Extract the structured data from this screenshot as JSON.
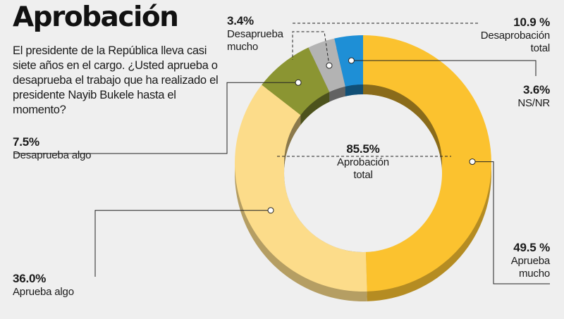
{
  "title": "Aprobación",
  "question": "El presidente de la República lleva casi siete años en el cargo. ¿Usted aprueba o desaprueba el trabajo que ha realizado el presidente Nayib Bukele hasta el momento?",
  "chart_data": {
    "type": "pie",
    "title": "Aprobación",
    "slices": [
      {
        "label": "Aprueba mucho",
        "line1": "Aprueba",
        "line2": "mucho",
        "value": 49.5,
        "display": "49.5 %",
        "color": "#fbc22f"
      },
      {
        "label": "Aprueba algo",
        "line1": "Aprueba algo",
        "line2": "",
        "value": 36.0,
        "display": "36.0%",
        "color": "#fcdc8a"
      },
      {
        "label": "Desaprueba algo",
        "line1": "Desaprueba algo",
        "line2": "",
        "value": 7.5,
        "display": "7.5%",
        "color": "#8b9532"
      },
      {
        "label": "Desaprueba mucho",
        "line1": "Desaprueba",
        "line2": "mucho",
        "value": 3.4,
        "display": "3.4%",
        "color": "#b3b3b3"
      },
      {
        "label": "NS/NR",
        "line1": "NS/NR",
        "line2": "",
        "value": 3.6,
        "display": "3.6%",
        "color": "#1e8fd6"
      }
    ],
    "totals": {
      "approval": {
        "display": "85.5%",
        "line1": "Aprobación",
        "line2": "total"
      },
      "disapproval": {
        "display": "10.9 %",
        "line1": "Desaprobación",
        "line2": "total"
      }
    }
  }
}
